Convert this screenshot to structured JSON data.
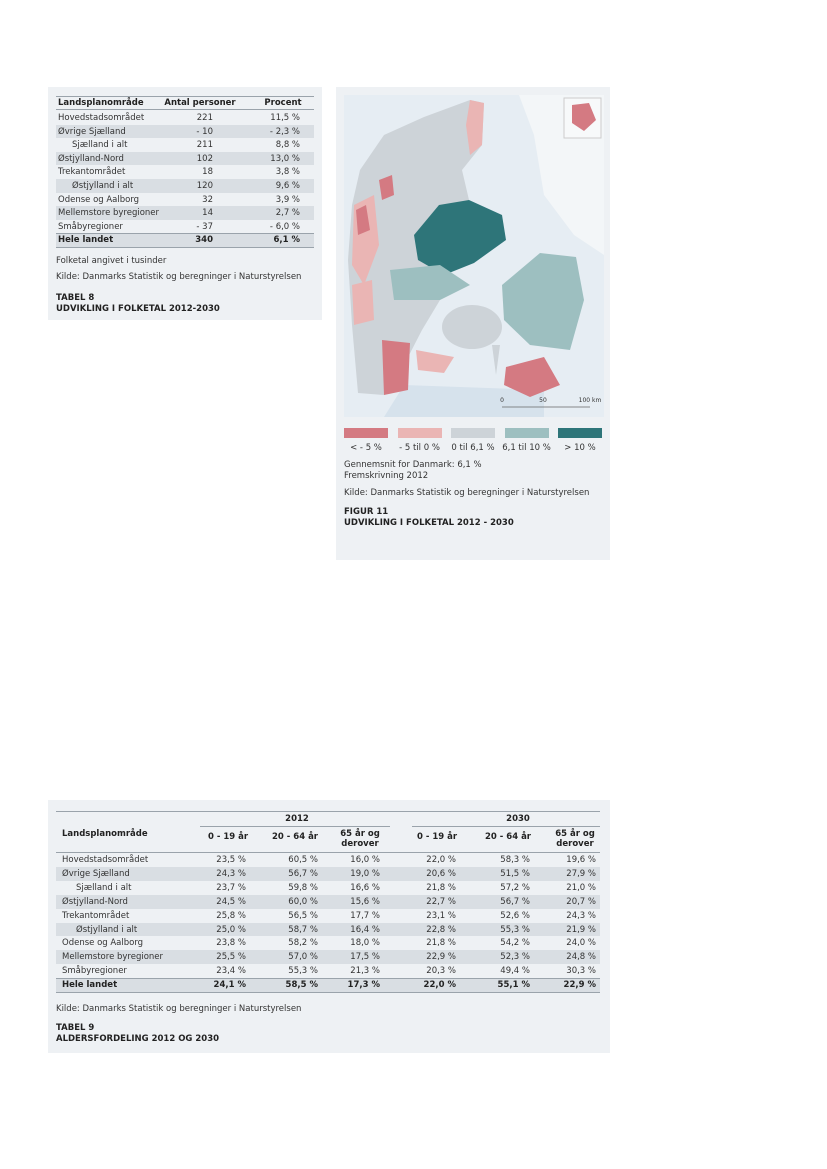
{
  "table8": {
    "header": [
      "Landsplanområde",
      "Antal personer",
      "Procent"
    ],
    "rows": [
      [
        "Hovedstadsområdet",
        "221",
        "11,5 %"
      ],
      [
        "Øvrige Sjælland",
        "- 10",
        "- 2,3 %"
      ],
      [
        "Sjælland i alt",
        "211",
        "8,8 %"
      ],
      [
        "Østjylland-Nord",
        "102",
        "13,0 %"
      ],
      [
        "Trekantområdet",
        "18",
        "3,8 %"
      ],
      [
        "Østjylland i alt",
        "120",
        "9,6 %"
      ],
      [
        "Odense og Aalborg",
        "32",
        "3,9 %"
      ],
      [
        "Mellemstore byregioner",
        "14",
        "2,7 %"
      ],
      [
        "Småbyregioner",
        "- 37",
        "- 6,0 %"
      ],
      [
        "Hele landet",
        "340",
        "6,1 %"
      ]
    ],
    "notes": [
      "Folketal angivet i tusinder",
      "Kilde: Danmarks Statistik og beregninger i Naturstyrelsen"
    ],
    "label": "TABEL 8",
    "title": "UDVIKLING I FOLKETAL 2012-2030"
  },
  "figure11": {
    "scale": [
      "0",
      "50",
      "100 km"
    ],
    "legend": [
      "< - 5 %",
      "- 5 til 0 %",
      "0 til 6,1 %",
      "6,1 til 10 %",
      "> 10 %"
    ],
    "notes": [
      "Gennemsnit for Danmark: 6,1 %",
      "Fremskrivning 2012",
      "Kilde: Danmarks Statistik og beregninger i Naturstyrelsen"
    ],
    "label": "FIGUR 11",
    "title": "UDVIKLING I FOLKETAL 2012 - 2030"
  },
  "table9": {
    "groups": [
      "2012",
      "2030"
    ],
    "header": [
      "Landsplanområde",
      "0 - 19 år",
      "20 - 64 år",
      "65 år og derover",
      "0 - 19 år",
      "20 - 64 år",
      "65 år og derover"
    ],
    "rows": [
      [
        "Hovedstadsområdet",
        "23,5 %",
        "60,5 %",
        "16,0 %",
        "22,0 %",
        "58,3 %",
        "19,6 %"
      ],
      [
        "Øvrige Sjælland",
        "24,3 %",
        "56,7 %",
        "19,0 %",
        "20,6 %",
        "51,5 %",
        "27,9 %"
      ],
      [
        "Sjælland i alt",
        "23,7 %",
        "59,8 %",
        "16,6 %",
        "21,8 %",
        "57,2 %",
        "21,0 %"
      ],
      [
        "Østjylland-Nord",
        "24,5 %",
        "60,0 %",
        "15,6 %",
        "22,7 %",
        "56,7 %",
        "20,7 %"
      ],
      [
        "Trekantområdet",
        "25,8 %",
        "56,5 %",
        "17,7 %",
        "23,1 %",
        "52,6 %",
        "24,3 %"
      ],
      [
        "Østjylland i alt",
        "25,0 %",
        "58,7 %",
        "16,4 %",
        "22,8 %",
        "55,3 %",
        "21,9 %"
      ],
      [
        "Odense og Aalborg",
        "23,8 %",
        "58,2 %",
        "18,0 %",
        "21,8 %",
        "54,2 %",
        "24,0 %"
      ],
      [
        "Mellemstore byregioner",
        "25,5 %",
        "57,0 %",
        "17,5 %",
        "22,9 %",
        "52,3 %",
        "24,8 %"
      ],
      [
        "Småbyregioner",
        "23,4 %",
        "55,3 %",
        "21,3 %",
        "20,3 %",
        "49,4 %",
        "30,3 %"
      ],
      [
        "Hele landet",
        "24,1 %",
        "58,5 %",
        "17,3 %",
        "22,0 %",
        "55,1 %",
        "22,9 %"
      ]
    ],
    "notes": [
      "Kilde: Danmarks Statistik og beregninger i Naturstyrelsen"
    ],
    "label": "TABEL 9",
    "title": "ALDERSFORDELING 2012 OG 2030"
  }
}
